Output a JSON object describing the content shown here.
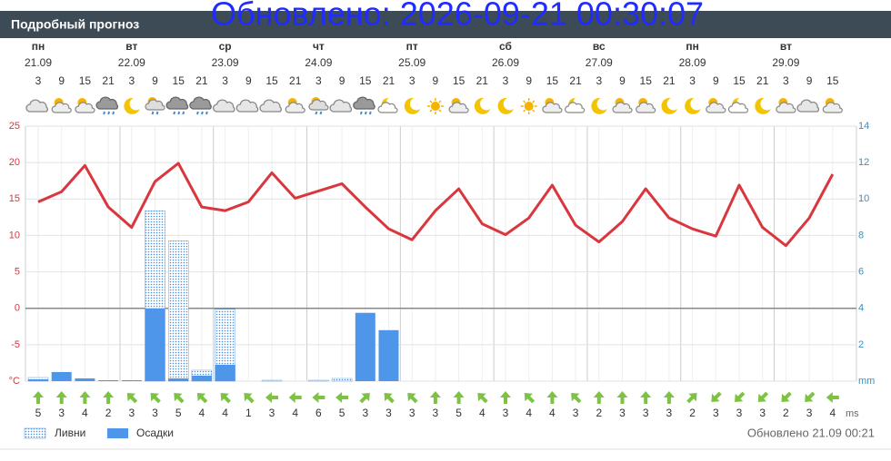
{
  "header": {
    "title": "Подробный прогноз",
    "overlay": "Обновлено: 2026-09-21 00:30:07"
  },
  "chart_data": {
    "type": "weather",
    "days": [
      {
        "weekday": "пн",
        "date": "21.09"
      },
      {
        "weekday": "вт",
        "date": "22.09"
      },
      {
        "weekday": "ср",
        "date": "23.09"
      },
      {
        "weekday": "чт",
        "date": "24.09"
      },
      {
        "weekday": "пт",
        "date": "25.09"
      },
      {
        "weekday": "сб",
        "date": "26.09"
      },
      {
        "weekday": "вс",
        "date": "27.09"
      },
      {
        "weekday": "пн",
        "date": "28.09"
      },
      {
        "weekday": "вт",
        "date": "29.09"
      }
    ],
    "hours": [
      3,
      9,
      15,
      21,
      3,
      9,
      15,
      21,
      3,
      9,
      15,
      21,
      3,
      9,
      15,
      21,
      3,
      9,
      15,
      21,
      3,
      9,
      15,
      21,
      3,
      9,
      15,
      21,
      3,
      9,
      15,
      21,
      3,
      9,
      15
    ],
    "temperature": {
      "color": "#d9363e",
      "values": [
        14.6,
        16,
        19.6,
        13.9,
        11.1,
        17.4,
        19.9,
        13.9,
        13.4,
        14.6,
        18.6,
        15.1,
        16.1,
        17.1,
        13.9,
        10.9,
        9.4,
        13.4,
        16.4,
        11.6,
        10.1,
        12.4,
        16.9,
        11.4,
        9.1,
        11.9,
        16.4,
        12.4,
        10.9,
        9.9,
        16.9,
        11.1,
        8.6,
        12.4,
        18.4
      ]
    },
    "series": [
      {
        "name": "Ливни",
        "color": "#4a90e2",
        "values": [
          0.2,
          0,
          0,
          0,
          0,
          9.35,
          7.7,
          0.6,
          3.95,
          0,
          0.05,
          0,
          0.05,
          0.15,
          0,
          0,
          0,
          0,
          0,
          0,
          0,
          0,
          0,
          0,
          0,
          0,
          0,
          0,
          0,
          0,
          0,
          0,
          0,
          0,
          0
        ]
      },
      {
        "name": "Осадки",
        "color": "#4e96ea",
        "values": [
          0.1,
          0.5,
          0.15,
          0.05,
          0.05,
          4.0,
          0.15,
          0.3,
          0.9,
          0,
          0,
          0,
          0,
          0,
          3.75,
          2.8,
          0,
          0,
          0,
          0,
          0,
          0,
          0,
          0,
          0,
          0,
          0,
          0,
          0,
          0,
          0,
          0,
          0,
          0,
          0
        ]
      }
    ],
    "ylim": [
      -10,
      25
    ],
    "yticks": [
      25,
      20,
      15,
      10,
      5,
      0,
      -5,
      {
        "value": -10,
        "label": "°C"
      }
    ],
    "y2lim": [
      0,
      14
    ],
    "y2ticks": [
      14,
      12,
      10,
      8,
      6,
      4,
      2,
      {
        "value": 0,
        "label": "mm"
      }
    ],
    "grid": true,
    "wind": {
      "unit": "ms",
      "color": "#7dc242",
      "speed": [
        5,
        3,
        4,
        2,
        3,
        3,
        5,
        4,
        4,
        1,
        3,
        4,
        6,
        5,
        3,
        3,
        3,
        3,
        5,
        4,
        3,
        4,
        4,
        3,
        2,
        3,
        3,
        3,
        2,
        3,
        3,
        3,
        2,
        3,
        4
      ],
      "direction": [
        0,
        0,
        0,
        0,
        -45,
        -45,
        -45,
        -45,
        -45,
        -45,
        -90,
        -90,
        -90,
        -90,
        45,
        -45,
        -45,
        0,
        0,
        -45,
        0,
        -45,
        0,
        -45,
        0,
        0,
        0,
        0,
        45,
        -135,
        -135,
        -135,
        -135,
        -135,
        -90
      ]
    },
    "updated": "Обновлено 21.09 00:21"
  }
}
